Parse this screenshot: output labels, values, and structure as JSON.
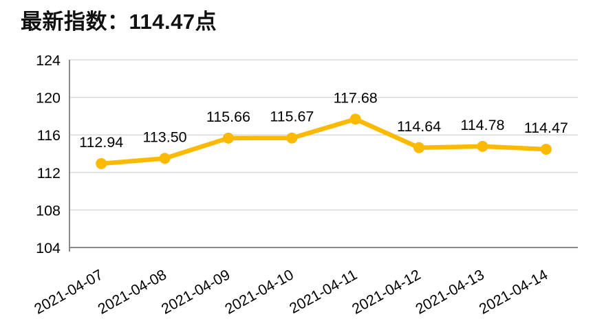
{
  "title": "最新指数：114.47点",
  "latest_index_value": "114.47",
  "chart_data": {
    "type": "line",
    "title": "最新指数：114.47点",
    "categories": [
      "2021-04-07",
      "2021-04-08",
      "2021-04-09",
      "2021-04-10",
      "2021-04-11",
      "2021-04-12",
      "2021-04-13",
      "2021-04-14"
    ],
    "series": [
      {
        "name": "最新指数",
        "values": [
          112.94,
          113.5,
          115.66,
          115.67,
          117.68,
          114.64,
          114.78,
          114.47
        ],
        "value_labels": [
          "112.94",
          "113.50",
          "115.66",
          "115.67",
          "117.68",
          "114.64",
          "114.78",
          "114.47"
        ]
      }
    ],
    "xlabel": "",
    "ylabel": "",
    "ylim": [
      104,
      124
    ],
    "yticks": [
      104,
      108,
      112,
      116,
      120,
      124
    ],
    "grid": true,
    "legend": "none",
    "x_tick_rotation": -29,
    "colors": {
      "line": "#FBBA00",
      "marker": "#FBBA00",
      "gridline": "#D9D9D9",
      "axis": "#8A8A8A",
      "text": "#000000"
    }
  }
}
